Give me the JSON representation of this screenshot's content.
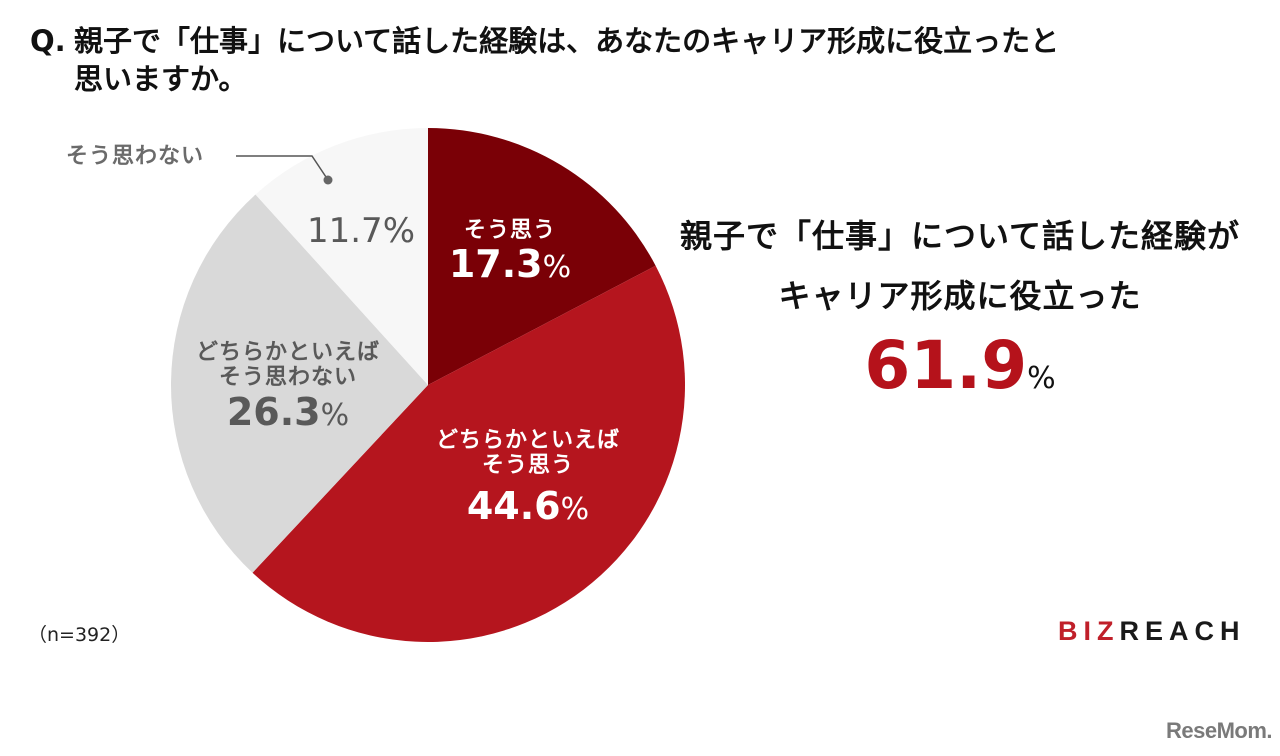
{
  "question": {
    "prefix": "Q.",
    "line1": "親子で「仕事」について話した経験は、あなたのキャリア形成に役立ったと",
    "line2": "思いますか。"
  },
  "chart_data": {
    "type": "pie",
    "title": "Q. 親子で「仕事」について話した経験は、あなたのキャリア形成に役立ったと思いますか。",
    "start_angle": "12 o'clock, clockwise",
    "categories": [
      "そう思う",
      "どちらかといえばそう思う",
      "どちらかといえばそう思わない",
      "そう思わない"
    ],
    "values": [
      17.3,
      44.6,
      26.3,
      11.7
    ],
    "colors": [
      "#7a0006",
      "#b5151e",
      "#d9d9d9",
      "#f7f7f7"
    ],
    "unit": "%",
    "sample_size": "n=392",
    "annotation": "親子で「仕事」について話した経験がキャリア形成に役立った 61.9%"
  },
  "slices": [
    {
      "name_line1": "そう思う",
      "name_line2": "",
      "value": "17.3",
      "unit": "%"
    },
    {
      "name_line1": "どちらかといえば",
      "name_line2": "そう思う",
      "value": "44.6",
      "unit": "%"
    },
    {
      "name_line1": "どちらかといえば",
      "name_line2": "そう思わない",
      "value": "26.3",
      "unit": "%"
    },
    {
      "name_line1": "そう思わない",
      "name_line2": "",
      "value": "11.7",
      "unit": "%"
    }
  ],
  "summary": {
    "line1": "親子で「仕事」について話した経験が",
    "line2": "キャリア形成に役立った",
    "value": "61.9",
    "unit": "%",
    "accent_color": "#b5121b"
  },
  "footer": {
    "sample": "（n=392）",
    "logo_biz": "BIZ",
    "logo_reach": "REACH",
    "watermark": "ReseMom."
  }
}
